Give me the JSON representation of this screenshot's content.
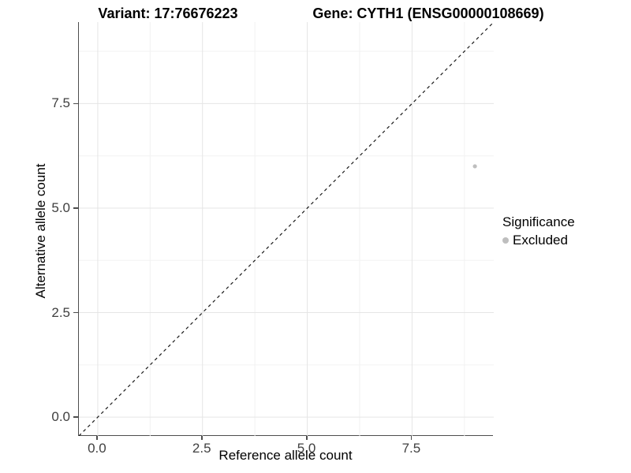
{
  "chart_data": {
    "type": "scatter",
    "titles": [
      "Variant: 17:76676223",
      "Gene: CYTH1 (ENSG00000108669)"
    ],
    "xlabel": "Reference allele count",
    "ylabel": "Alternative allele count",
    "xlim": [
      -0.45,
      9.45
    ],
    "ylim": [
      -0.45,
      9.45
    ],
    "x_ticks": {
      "values": [
        0,
        2.5,
        5,
        7.5
      ],
      "labels": [
        "0.0",
        "2.5",
        "5.0",
        "7.5"
      ]
    },
    "y_ticks": {
      "values": [
        0,
        2.5,
        5,
        7.5
      ],
      "labels": [
        "0.0",
        "2.5",
        "5.0",
        "7.5"
      ]
    },
    "x_minor": [
      1.25,
      3.75,
      6.25,
      8.75
    ],
    "y_minor": [
      1.25,
      3.75,
      6.25,
      8.75
    ],
    "grid": true,
    "points": [
      {
        "x": 9,
        "y": 6,
        "significance": "Excluded"
      }
    ],
    "identity_line": {
      "slope": 1,
      "intercept": 0,
      "style": "dashed"
    },
    "legend": {
      "title": "Significance",
      "position": "right",
      "entries": [
        {
          "label": "Excluded",
          "color": "#bebebe"
        }
      ]
    }
  },
  "colors": {
    "background": "#ffffff",
    "point_excluded": "#bebebe",
    "grid_major": "#e5e5e5",
    "grid_minor": "#f2f2f2",
    "axis_line": "#4d4d4d",
    "tick_label": "#404040",
    "title_text": "#000000",
    "dashed_line": "#1a1a1a"
  }
}
